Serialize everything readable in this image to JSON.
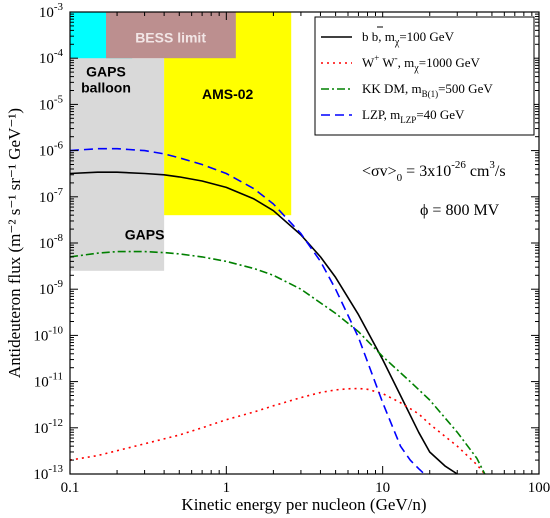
{
  "chart_data": {
    "type": "line",
    "xlabel": "Kinetic energy per nucleon (GeV/n)",
    "ylabel": "Antideuteron flux (m⁻² s⁻¹ sr⁻¹ GeV⁻¹)",
    "x_scale": "log",
    "y_scale": "log",
    "xlim": [
      0.1,
      100
    ],
    "ylim": [
      1e-13,
      0.001
    ],
    "x_ticks": [
      {
        "value": 0.1,
        "label": "0.1"
      },
      {
        "value": 1,
        "label": "1"
      },
      {
        "value": 10,
        "label": "10"
      },
      {
        "value": 100,
        "label": "100"
      }
    ],
    "y_ticks": [
      {
        "value": 1e-13,
        "base": "10",
        "exp": "-13"
      },
      {
        "value": 1e-12,
        "base": "10",
        "exp": "-12"
      },
      {
        "value": 1e-11,
        "base": "10",
        "exp": "-11"
      },
      {
        "value": 1e-10,
        "base": "10",
        "exp": "-10"
      },
      {
        "value": 1e-09,
        "base": "10",
        "exp": "-9"
      },
      {
        "value": 1e-08,
        "base": "10",
        "exp": "-8"
      },
      {
        "value": 1e-07,
        "base": "10",
        "exp": "-7"
      },
      {
        "value": 1e-06,
        "base": "10",
        "exp": "-6"
      },
      {
        "value": 1e-05,
        "base": "10",
        "exp": "-5"
      },
      {
        "value": 0.0001,
        "base": "10",
        "exp": "-4"
      },
      {
        "value": 0.001,
        "base": "10",
        "exp": "-3"
      }
    ],
    "regions": [
      {
        "name": "gaps-balloon",
        "label_lines": [
          "GAPS",
          "balloon"
        ],
        "x": [
          0.1,
          0.25
        ],
        "y": [
          3e-08,
          0.001
        ],
        "color": "#00ffff",
        "text_color": "#000000",
        "label_pos": [
          0.17,
          4e-05
        ]
      },
      {
        "name": "gaps",
        "label_lines": [
          "GAPS"
        ],
        "x": [
          0.1,
          0.4
        ],
        "y": [
          2.5e-09,
          0.0001
        ],
        "color": "#d9d9d9",
        "text_color": "#000000",
        "label_pos": [
          0.3,
          1.2e-08
        ]
      },
      {
        "name": "ams-02",
        "label_lines": [
          "AMS-02"
        ],
        "x": [
          0.4,
          2.6
        ],
        "y": [
          4e-08,
          0.001
        ],
        "color": "#ffff00",
        "text_color": "#000000",
        "label_pos": [
          1.02,
          1.3e-05
        ]
      },
      {
        "name": "bess-limit",
        "label_lines": [
          "BESS limit"
        ],
        "x": [
          0.17,
          1.15
        ],
        "y": [
          0.0001,
          0.001
        ],
        "color": "#bc8f8f",
        "text_color": "#f2e6e6",
        "label_pos": [
          0.44,
          0.00022
        ]
      }
    ],
    "series": [
      {
        "name": "b b̄, mχ=100 GeV",
        "legend": {
          "main": "b b",
          "sub_label": "m",
          "sub": "χ",
          "tail": "=100 GeV",
          "bar_over": "b"
        },
        "color": "#000000",
        "dash": "",
        "x": [
          0.1,
          0.15,
          0.2,
          0.3,
          0.4,
          0.5,
          0.7,
          1,
          1.5,
          2,
          3,
          4,
          5,
          7,
          10,
          13,
          17,
          20,
          25,
          30
        ],
        "y": [
          3.2e-07,
          3.4e-07,
          3.4e-07,
          3.2e-07,
          3e-07,
          2.7e-07,
          2.2e-07,
          1.6e-07,
          9e-08,
          5e-08,
          1.5e-08,
          5e-09,
          1.8e-09,
          2.8e-10,
          3e-11,
          5e-12,
          8e-13,
          3e-13,
          1.5e-13,
          1e-13
        ]
      },
      {
        "name": "W⁺W⁻, mχ=1000 GeV",
        "legend": {
          "main": "W",
          "sup1": "+",
          "main2": " W",
          "sup2": "-",
          "sub_label": ", m",
          "sub": "χ",
          "tail": "=1000 GeV"
        },
        "color": "#ff0000",
        "dash": "2,4",
        "x": [
          0.1,
          0.15,
          0.2,
          0.3,
          0.5,
          0.7,
          1,
          1.5,
          2,
          3,
          4,
          5,
          6,
          7,
          8,
          10,
          13,
          17,
          20,
          30,
          40,
          45
        ],
        "y": [
          2e-13,
          2.5e-13,
          3.2e-13,
          4.5e-13,
          7e-13,
          1e-12,
          1.5e-12,
          2.2e-12,
          3e-12,
          4.5e-12,
          5.8e-12,
          6.6e-12,
          7e-12,
          7.1e-12,
          6.8e-12,
          5.5e-12,
          3.5e-12,
          2e-12,
          1.2e-12,
          4e-13,
          1.6e-13,
          1e-13
        ]
      },
      {
        "name": "KK DM, mB(1)=500 GeV",
        "legend": {
          "main": "KK DM,  m",
          "sub": "B(1)",
          "tail": "=500 GeV"
        },
        "color": "#008000",
        "dash": "8,3,2,3",
        "x": [
          0.1,
          0.15,
          0.2,
          0.3,
          0.4,
          0.5,
          0.7,
          1,
          1.5,
          2,
          3,
          5,
          7,
          10,
          15,
          20,
          30,
          40,
          45
        ],
        "y": [
          5e-09,
          6e-09,
          6.5e-09,
          6.5e-09,
          6.2e-09,
          5.8e-09,
          5e-09,
          4e-09,
          2.8e-09,
          2e-09,
          1e-09,
          3e-10,
          1.2e-10,
          3.5e-11,
          1e-11,
          4e-12,
          8e-13,
          2.2e-13,
          1e-13
        ]
      },
      {
        "name": "LZP, mLZP=40 GeV",
        "legend": {
          "main": "LZP,  m",
          "sub": "LZP",
          "tail": "=40 GeV"
        },
        "color": "#0000ff",
        "dash": "9,5",
        "x": [
          0.1,
          0.15,
          0.2,
          0.3,
          0.4,
          0.5,
          0.7,
          1,
          1.5,
          2,
          3,
          4,
          5,
          7,
          10,
          13,
          15,
          17,
          18.5
        ],
        "y": [
          1e-06,
          1.1e-06,
          1.1e-06,
          1e-06,
          8.5e-07,
          7e-07,
          5e-07,
          3.2e-07,
          1.5e-07,
          7e-08,
          1.6e-08,
          4e-09,
          1e-09,
          9e-11,
          3.5e-12,
          4e-13,
          2e-13,
          1.3e-13,
          1e-13
        ]
      }
    ],
    "annotations": [
      {
        "name": "cross-section-annotation",
        "parts": {
          "pre": "<σv>",
          "sub": "0",
          "mid": " = 3x10",
          "sup": "-26",
          "post": " cm",
          "sup2": "3",
          "tail": "/s"
        }
      },
      {
        "name": "phi-annotation",
        "text": "ϕ = 800 MV"
      }
    ],
    "legend_position": "top-right",
    "grid": false
  }
}
